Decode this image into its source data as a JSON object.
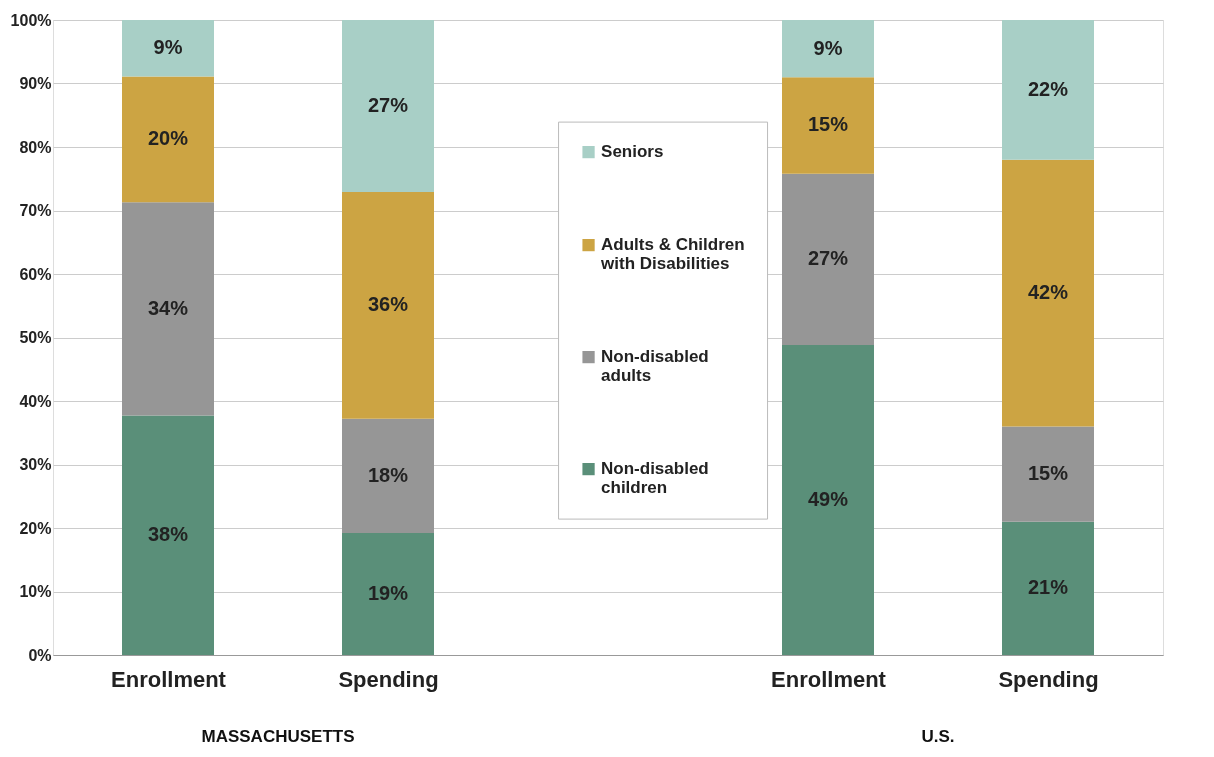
{
  "chart_data": {
    "type": "bar",
    "stacked": true,
    "categories": [
      "Enrollment",
      "Spending",
      null,
      "Enrollment",
      "Spending"
    ],
    "series": [
      {
        "name": "Non-disabled children",
        "color": "#5a8f79",
        "values": [
          37.7,
          19.2,
          null,
          48.8,
          21.0
        ],
        "value_labels": [
          "38%",
          "19%",
          null,
          "49%",
          "21%"
        ]
      },
      {
        "name": "Non-disabled adults",
        "color": "#969696",
        "values": [
          33.6,
          18.0,
          null,
          27.0,
          15.0
        ],
        "value_labels": [
          "34%",
          "18%",
          null,
          "27%",
          "15%"
        ]
      },
      {
        "name": "Adults & Children with Disabilities",
        "color": "#cca443",
        "values": [
          19.8,
          35.7,
          null,
          15.2,
          42.0
        ],
        "value_labels": [
          "20%",
          "36%",
          null,
          "15%",
          "42%"
        ]
      },
      {
        "name": "Seniors",
        "color": "#a8cfc6",
        "values": [
          8.9,
          27.1,
          null,
          9.0,
          22.0
        ],
        "value_labels": [
          "9%",
          "27%",
          null,
          "9%",
          "22%"
        ]
      }
    ],
    "ylim": [
      0,
      100
    ],
    "yticks": [
      {
        "value": 0,
        "label": "0%"
      },
      {
        "value": 10,
        "label": "10%"
      },
      {
        "value": 20,
        "label": "20%"
      },
      {
        "value": 30,
        "label": "30%"
      },
      {
        "value": 40,
        "label": "40%"
      },
      {
        "value": 50,
        "label": "50%"
      },
      {
        "value": 60,
        "label": "60%"
      },
      {
        "value": 70,
        "label": "70%"
      },
      {
        "value": 80,
        "label": "80%"
      },
      {
        "value": 90,
        "label": "90%"
      },
      {
        "value": 100,
        "label": "100%"
      }
    ],
    "grid": "y",
    "legend": "center",
    "annotations": [
      "MASSACHUSETTS",
      "U.S."
    ]
  }
}
